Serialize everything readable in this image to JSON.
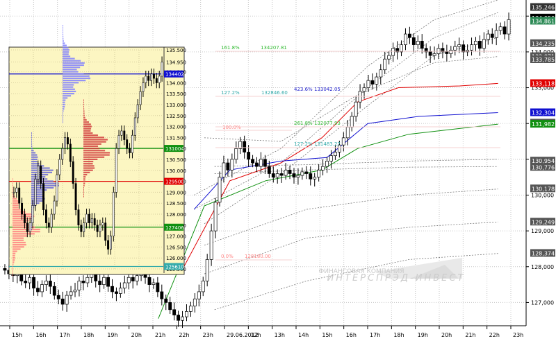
{
  "chart_data": [
    {
      "type": "candlestick",
      "panel": "main",
      "title": "",
      "x_tick_labels": [
        "15h",
        "16h",
        "17h",
        "18h",
        "19h",
        "20h",
        "21h",
        "22h",
        "23h",
        "29.06.2012",
        "12h",
        "13h",
        "14h",
        "15h",
        "16h",
        "17h",
        "18h",
        "19h",
        "20h",
        "21h",
        "22h",
        "23h"
      ],
      "y_tick_labels": [
        "127,000",
        "128,000",
        "129,000",
        "130,000",
        "131,000",
        "132,000",
        "133,000",
        "134,000",
        "135,000"
      ],
      "ylim": [
        126.35,
        135.45
      ],
      "price_tags": [
        {
          "value": "135,246",
          "color": "#333333"
        },
        {
          "value": "134,950",
          "color": "#000000"
        },
        {
          "value": "134,861",
          "color": "#2e8b57"
        },
        {
          "value": "134,235",
          "color": "#555555"
        },
        {
          "value": "133,871",
          "color": "#555555"
        },
        {
          "value": "133,785",
          "color": "#555555"
        },
        {
          "value": "133,118",
          "color": "#e00000"
        },
        {
          "value": "132,304",
          "color": "#1010d0"
        },
        {
          "value": "132,014",
          "color": "#555555"
        },
        {
          "value": "131,982",
          "color": "#109010"
        },
        {
          "value": "130,954",
          "color": "#555555"
        },
        {
          "value": "130,776",
          "color": "#555555"
        },
        {
          "value": "130,178",
          "color": "#555555"
        },
        {
          "value": "129,249",
          "color": "#555555"
        },
        {
          "value": "128,374",
          "color": "#555555"
        }
      ],
      "fib_labels": [
        {
          "text": "161.8%",
          "color": "#33bb33"
        },
        {
          "text": "134207.81",
          "color": "#33bb33"
        },
        {
          "text": "127.2%",
          "color": "#33aaaa"
        },
        {
          "text": "132846.60",
          "color": "#33aaaa"
        },
        {
          "text": "423.6%",
          "color": "#2222cc"
        },
        {
          "text": "133042.05",
          "color": "#2222cc"
        },
        {
          "text": "261.8%",
          "color": "#33bb33"
        },
        {
          "text": "132077.93",
          "color": "#33bb33"
        },
        {
          "text": "100.0%",
          "color": "#ff8888"
        },
        {
          "text": "127.2%",
          "color": "#33aaaa"
        },
        {
          "text": "131483.27",
          "color": "#33aaaa"
        },
        {
          "text": "0.0%",
          "color": "#ff8888"
        },
        {
          "text": "128180.00",
          "color": "#ff8888"
        }
      ],
      "moving_averages": [
        {
          "color": "#e00000",
          "values": [
            [
              0.36,
              128.0
            ],
            [
              0.45,
              130.4
            ],
            [
              0.55,
              130.9
            ],
            [
              0.63,
              131.6
            ],
            [
              0.7,
              132.6
            ],
            [
              0.78,
              133.0
            ],
            [
              0.9,
              133.05
            ],
            [
              0.975,
              133.118
            ]
          ]
        },
        {
          "color": "#1010d0",
          "values": [
            [
              0.38,
              129.6
            ],
            [
              0.45,
              130.7
            ],
            [
              0.55,
              130.95
            ],
            [
              0.64,
              131.05
            ],
            [
              0.72,
              132.0
            ],
            [
              0.82,
              132.2
            ],
            [
              0.975,
              132.304
            ]
          ]
        },
        {
          "color": "#109010",
          "values": [
            [
              0.31,
              126.55
            ],
            [
              0.4,
              129.7
            ],
            [
              0.52,
              130.4
            ],
            [
              0.63,
              130.7
            ],
            [
              0.7,
              131.3
            ],
            [
              0.8,
              131.7
            ],
            [
              0.975,
              131.982
            ]
          ]
        }
      ],
      "candles_close": [
        127.9,
        127.8,
        127.75,
        127.85,
        127.6,
        127.55,
        127.7,
        127.4,
        127.3,
        127.5,
        127.6,
        127.45,
        127.2,
        127.1,
        126.95,
        127.2,
        127.3,
        127.35,
        127.6,
        127.55,
        127.7,
        127.8,
        127.6,
        127.5,
        127.7,
        127.45,
        127.3,
        127.25,
        127.4,
        127.55,
        127.7,
        127.6,
        127.75,
        127.8,
        127.7,
        127.5,
        127.55,
        127.3,
        127.1,
        127.0,
        126.8,
        126.65,
        126.5,
        126.6,
        126.75,
        126.9,
        127.1,
        127.3,
        127.6,
        128.2,
        129.0,
        129.8,
        130.5,
        130.9,
        130.7,
        131.0,
        131.3,
        131.5,
        131.2,
        131.0,
        130.9,
        130.8,
        131.0,
        130.8,
        130.6,
        130.5,
        130.6,
        130.55,
        130.7,
        130.6,
        130.5,
        130.55,
        130.65,
        130.6,
        130.45,
        130.5,
        130.7,
        130.8,
        130.95,
        131.1,
        131.2,
        131.4,
        131.6,
        131.9,
        132.2,
        132.6,
        132.9,
        133.0,
        133.2,
        133.1,
        133.3,
        133.5,
        133.8,
        133.9,
        134.1,
        134.0,
        134.2,
        134.5,
        134.4,
        134.2,
        134.3,
        134.1,
        134.0,
        133.9,
        133.95,
        134.1,
        134.0,
        133.95,
        134.05,
        134.15,
        134.2,
        134.0,
        134.05,
        134.2,
        134.3,
        134.1,
        134.35,
        134.5,
        134.4,
        134.6,
        134.7,
        134.5,
        134.9
      ]
    },
    {
      "type": "candlestick",
      "panel": "inset-market-profile",
      "y_tick_labels": [
        "135.500",
        "134.950",
        "134.500",
        "134.000",
        "133.500",
        "133.000",
        "132.500",
        "132.000",
        "131.500",
        "131.000",
        "130.500",
        "130.000",
        "129.500",
        "129.000",
        "128.500",
        "128.000",
        "127.500",
        "127.000",
        "126.500",
        "126.000",
        "125.500"
      ],
      "ylim": [
        125.5,
        135.5
      ],
      "price_tags": [
        {
          "value": "134402",
          "color": "#1010d0"
        },
        {
          "value": "131004",
          "color": "#109010"
        },
        {
          "value": "129500",
          "color": "#e00000"
        },
        {
          "value": "127406",
          "color": "#109010"
        },
        {
          "value": "125610",
          "color": "#33aaaa"
        }
      ],
      "candles_close": [
        129.0,
        129.2,
        128.5,
        128.0,
        127.6,
        127.2,
        127.6,
        128.4,
        129.6,
        130.2,
        129.4,
        128.2,
        127.6,
        127.4,
        128.0,
        128.6,
        129.8,
        130.5,
        131.0,
        131.5,
        131.2,
        130.4,
        129.4,
        128.2,
        127.5,
        127.2,
        127.6,
        128.0,
        127.6,
        127.8,
        127.5,
        127.2,
        127.5,
        127.6,
        126.8,
        126.4,
        127.0,
        129.0,
        131.0,
        131.6,
        131.8,
        131.4,
        131.0,
        130.8,
        131.6,
        132.4,
        133.0,
        133.6,
        134.0,
        134.3,
        134.1,
        134.4,
        134.2,
        134.0,
        134.3,
        134.95
      ],
      "profiles": [
        {
          "color": "#ff8080",
          "peak_price": 127.4
        },
        {
          "color": "#6a6ad8",
          "peak_price": 129.5
        },
        {
          "color": "#d24040",
          "peak_price": 131.0
        },
        {
          "color": "#8080ff",
          "peak_price": 134.4
        }
      ]
    }
  ],
  "watermark": {
    "line1": "ФИНАНСОВАЯ КОМПАНИЯ",
    "line2": "ИНТЕРСПРЭД-ИНВЕСТ"
  }
}
